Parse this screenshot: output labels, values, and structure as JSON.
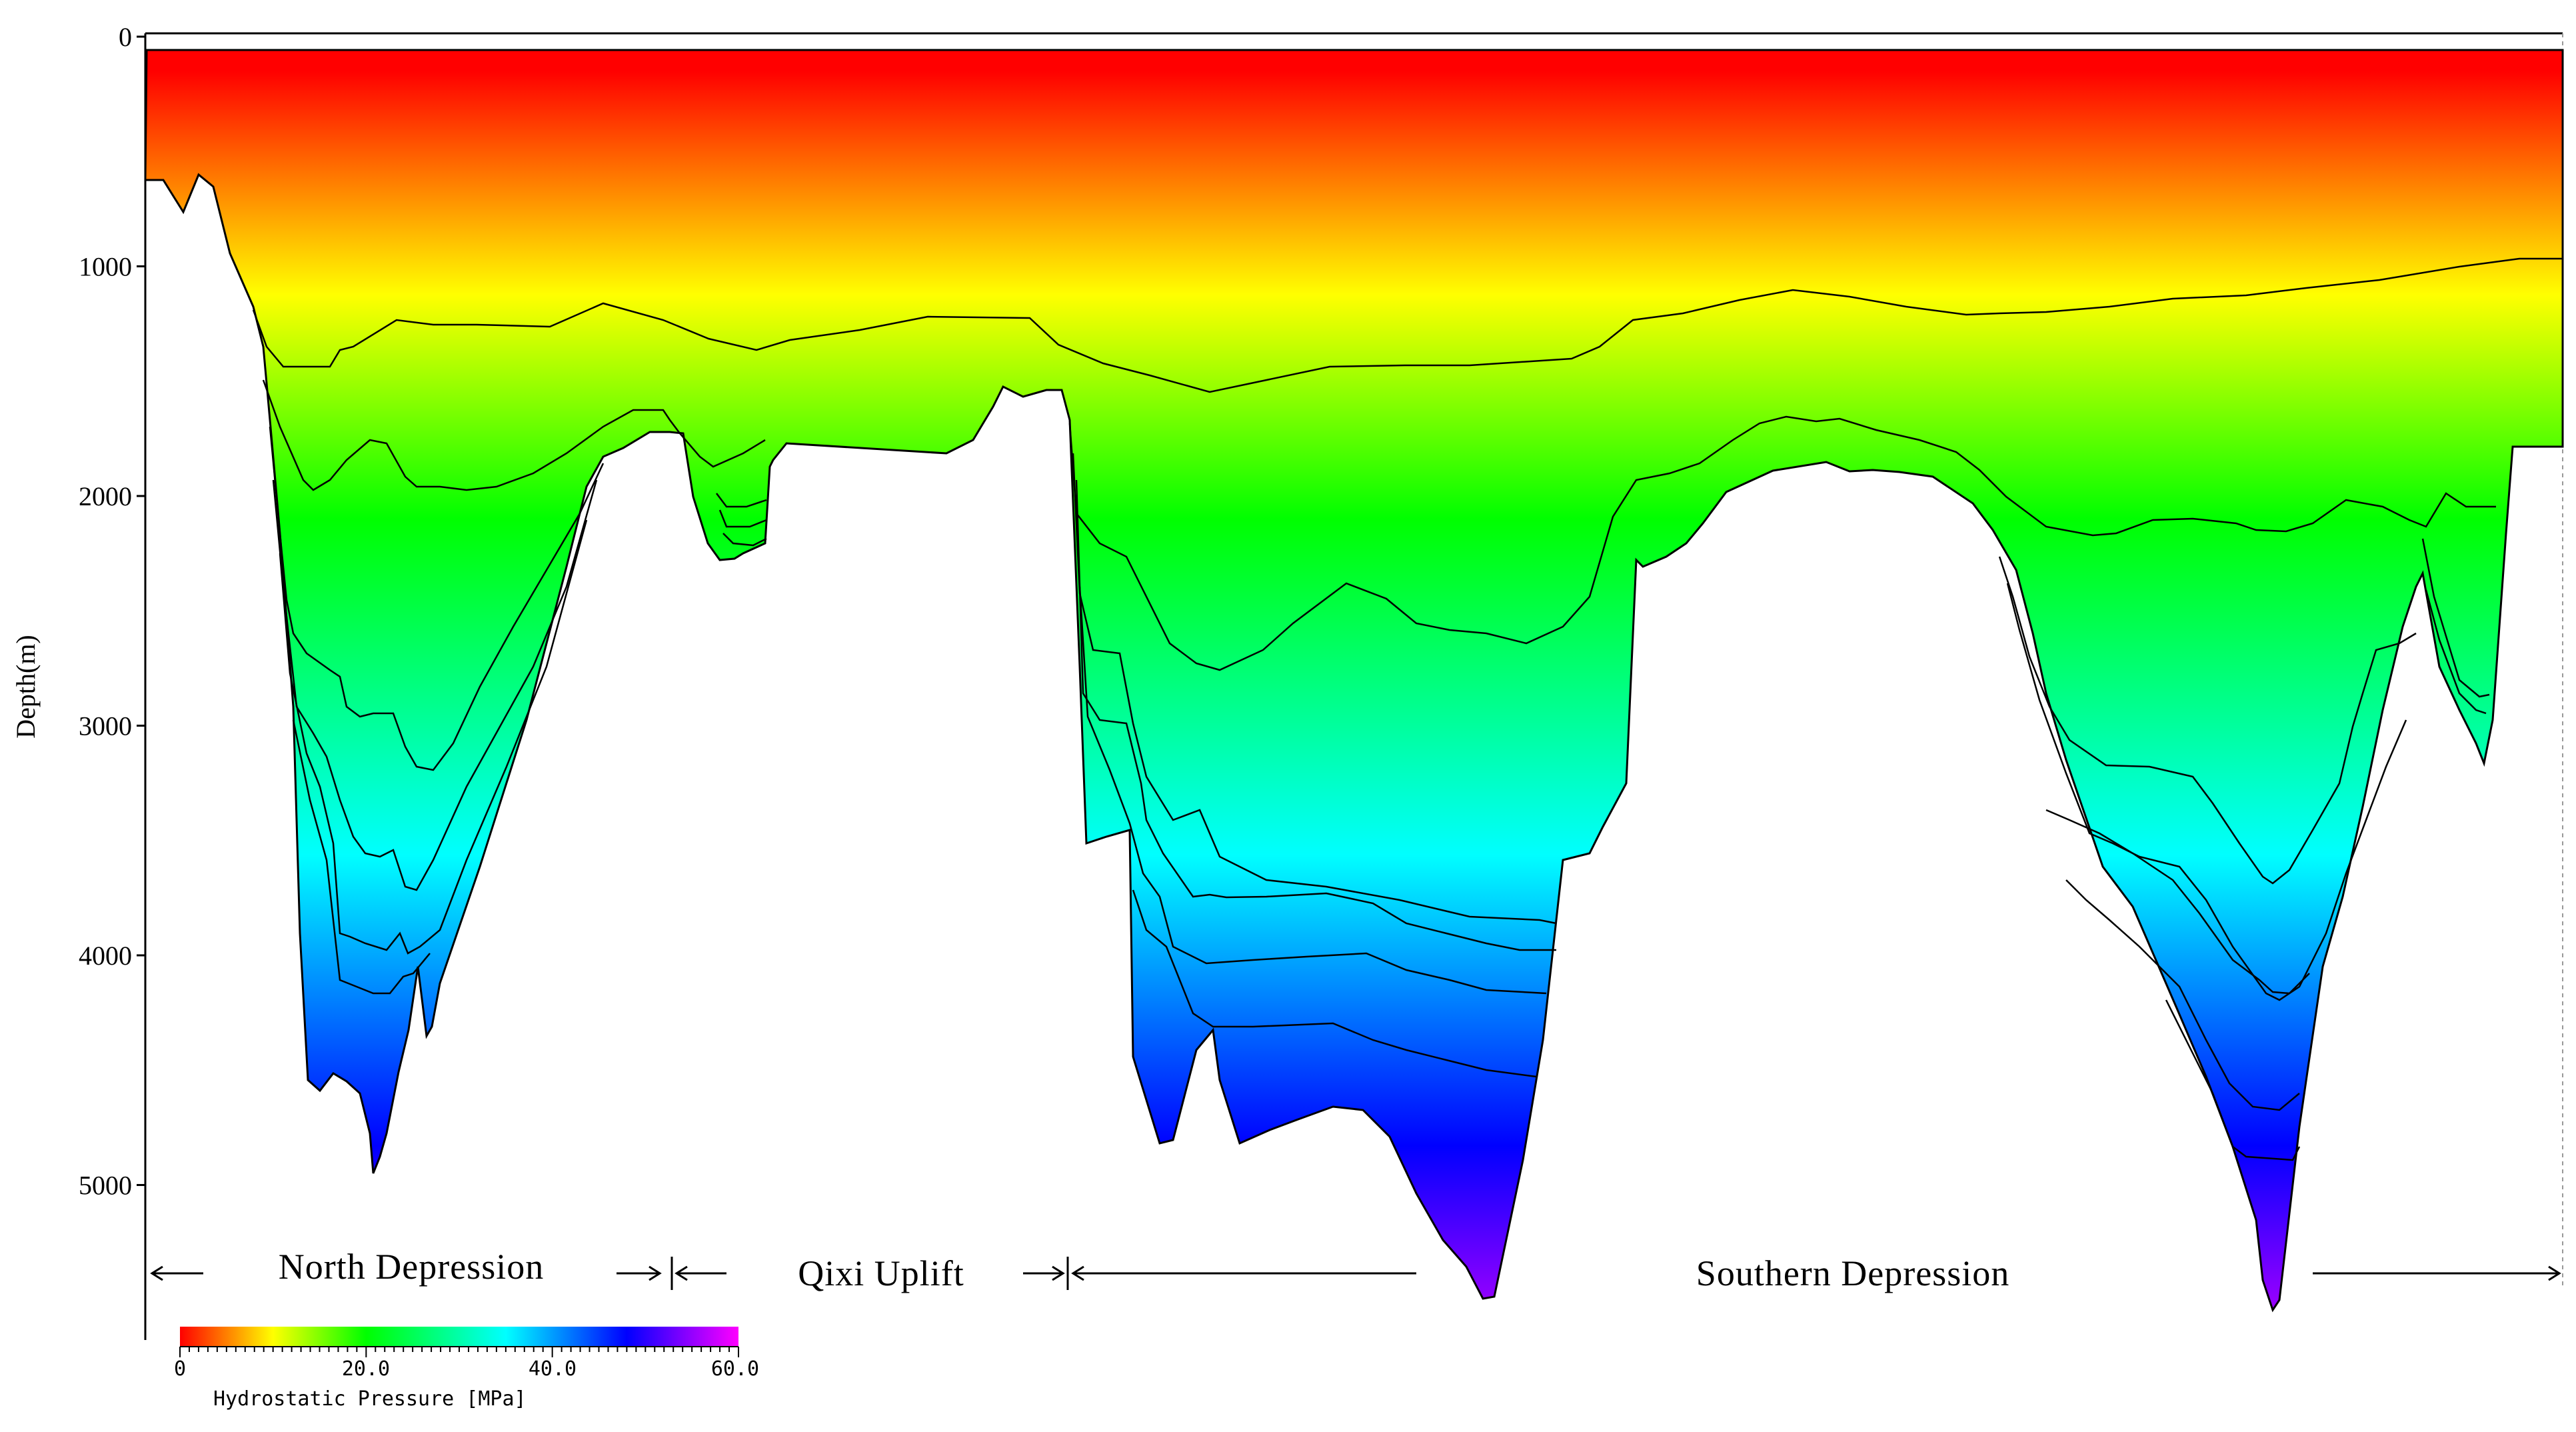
{
  "y_axis": {
    "title": "Depth(m)",
    "ticks": [
      {
        "value": 0,
        "label": "0"
      },
      {
        "value": 1000,
        "label": "1000"
      },
      {
        "value": 2000,
        "label": "2000"
      },
      {
        "value": 3000,
        "label": "3000"
      },
      {
        "value": 4000,
        "label": "4000"
      },
      {
        "value": 5000,
        "label": "5000"
      }
    ]
  },
  "regions": [
    {
      "name": "North Depression"
    },
    {
      "name": "Qixi Uplift"
    },
    {
      "name": "Southern Depression"
    }
  ],
  "color_scale": {
    "title": "Hydrostatic Pressure [MPa]",
    "min": 0,
    "max": 60,
    "tick_labels": [
      "0",
      "20.0",
      "40.0",
      "60.0"
    ],
    "stops": [
      {
        "value": 0,
        "color": "#ff0000"
      },
      {
        "value": 10,
        "color": "#ffff00"
      },
      {
        "value": 20,
        "color": "#00ff00"
      },
      {
        "value": 35,
        "color": "#00ffff"
      },
      {
        "value": 48,
        "color": "#0000ff"
      },
      {
        "value": 60,
        "color": "#ff00ff"
      }
    ]
  }
}
